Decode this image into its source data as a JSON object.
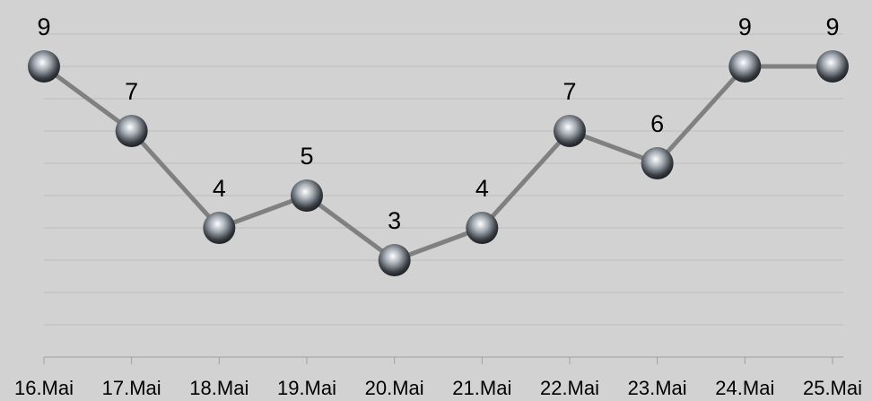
{
  "chart_data": {
    "type": "line",
    "categories": [
      "16.Mai",
      "17.Mai",
      "18.Mai",
      "19.Mai",
      "20.Mai",
      "21.Mai",
      "22.Mai",
      "23.Mai",
      "24.Mai",
      "25.Mai"
    ],
    "values": [
      9,
      7,
      4,
      5,
      3,
      4,
      7,
      6,
      9,
      9
    ],
    "color": "#808080",
    "ylim": [
      0,
      10
    ],
    "yticks": [
      0,
      1,
      2,
      3,
      4,
      5,
      6,
      7,
      8,
      9,
      10
    ],
    "grid": true
  }
}
